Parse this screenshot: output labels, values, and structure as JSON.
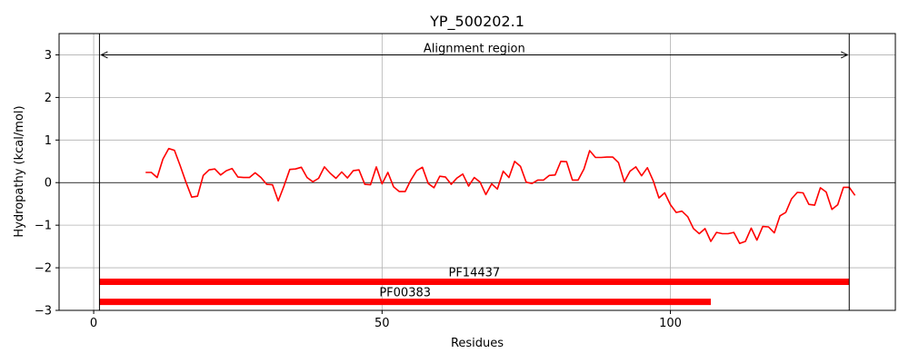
{
  "chart_data": {
    "type": "line",
    "title": "YP_500202.1",
    "xlabel": "Residues",
    "ylabel": "Hydropathy (kcal/mol)",
    "xlim": [
      -6,
      139
    ],
    "ylim": [
      -3,
      3.5
    ],
    "x_ticks": [
      0,
      50,
      100
    ],
    "y_ticks": [
      -3,
      -2,
      -1,
      0,
      1,
      2,
      3
    ],
    "x_tick_labels": [
      "0",
      "50",
      "100"
    ],
    "y_tick_labels": [
      "−3",
      "−2",
      "−1",
      "0",
      "1",
      "2",
      "3"
    ],
    "grid": true,
    "zero_line": true,
    "colors": {
      "series": "#ff0000",
      "domains": "#ff0000",
      "axes": "#000000",
      "grid": "#b0b0b0"
    },
    "series": [
      {
        "x": [
          9,
          10,
          11,
          12,
          13,
          14,
          15,
          16,
          17,
          18,
          19,
          20,
          21,
          22,
          23,
          24,
          25,
          26,
          27,
          28,
          29,
          30,
          31,
          32,
          33,
          34,
          35,
          36,
          37,
          38,
          39,
          40,
          41,
          42,
          43,
          44,
          45,
          46,
          47,
          48,
          49,
          50,
          51,
          52,
          53,
          54,
          55,
          56,
          57,
          58,
          59,
          60,
          61,
          62,
          63,
          64,
          65,
          66,
          67,
          68,
          69,
          70,
          71,
          72,
          73,
          74,
          75,
          76,
          77,
          78,
          79,
          80,
          81,
          82,
          83,
          84,
          85,
          86,
          87,
          88,
          89,
          90,
          91,
          92,
          93,
          94,
          95,
          96,
          97,
          98,
          99,
          100,
          101,
          102,
          103,
          104,
          105,
          106,
          107,
          108,
          109,
          110,
          111,
          112,
          113,
          114,
          115,
          116,
          117,
          118,
          119,
          120,
          121,
          122,
          123,
          124,
          125,
          126,
          127,
          128,
          129,
          130,
          131,
          132
        ],
        "values": [
          0.24,
          0.24,
          0.12,
          0.55,
          0.8,
          0.76,
          0.4,
          0.01,
          -0.34,
          -0.32,
          0.17,
          0.3,
          0.32,
          0.18,
          0.28,
          0.33,
          0.13,
          0.12,
          0.12,
          0.23,
          0.12,
          -0.04,
          -0.05,
          -0.43,
          -0.08,
          0.31,
          0.32,
          0.36,
          0.12,
          0.02,
          0.1,
          0.37,
          0.22,
          0.1,
          0.25,
          0.11,
          0.28,
          0.3,
          -0.04,
          -0.05,
          0.37,
          -0.03,
          0.24,
          -0.1,
          -0.21,
          -0.21,
          0.06,
          0.28,
          0.36,
          -0.02,
          -0.12,
          0.15,
          0.13,
          -0.04,
          0.11,
          0.2,
          -0.08,
          0.12,
          0.01,
          -0.28,
          -0.03,
          -0.15,
          0.27,
          0.12,
          0.5,
          0.38,
          0.01,
          -0.02,
          0.06,
          0.06,
          0.17,
          0.18,
          0.5,
          0.49,
          0.06,
          0.06,
          0.32,
          0.75,
          0.59,
          0.59,
          0.6,
          0.6,
          0.47,
          0.02,
          0.27,
          0.37,
          0.16,
          0.35,
          0.05,
          -0.36,
          -0.24,
          -0.52,
          -0.7,
          -0.67,
          -0.8,
          -1.08,
          -1.2,
          -1.08,
          -1.38,
          -1.17,
          -1.2,
          -1.2,
          -1.17,
          -1.43,
          -1.38,
          -1.07,
          -1.35,
          -1.03,
          -1.04,
          -1.18,
          -0.78,
          -0.7,
          -0.38,
          -0.23,
          -0.24,
          -0.51,
          -0.53,
          -0.12,
          -0.22,
          -0.63,
          -0.52,
          -0.11,
          -0.11,
          -0.3
        ]
      }
    ],
    "region": {
      "label": "Alignment region",
      "x_start": 1,
      "x_end": 131,
      "y": 3.0
    },
    "domains": [
      {
        "label": "PF14437",
        "x_start": 1,
        "x_end": 131,
        "y": -2.33
      },
      {
        "label": "PF00383",
        "x_start": 1,
        "x_end": 107,
        "y": -2.8
      }
    ]
  }
}
